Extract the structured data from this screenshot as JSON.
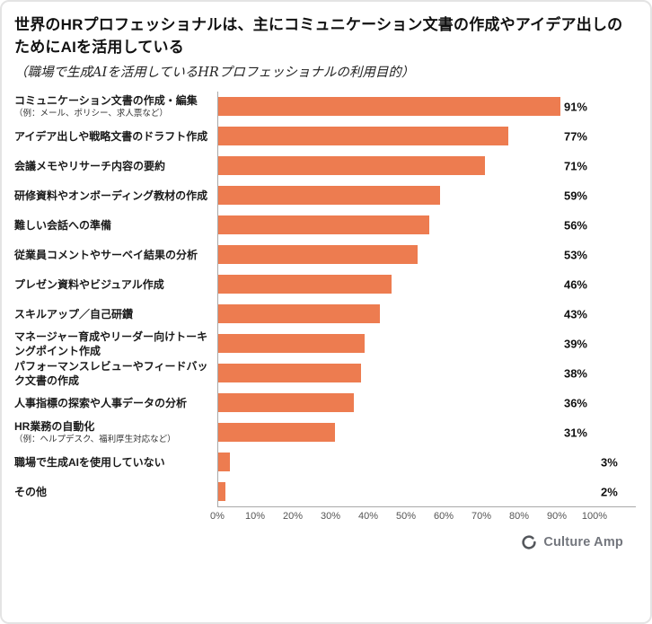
{
  "header": {
    "title": "世界のHRプロフェッショナルは、主にコミュニケーション文書の作成やアイデア出しのためにAIを活用している",
    "subtitle": "（職場で生成AIを活用しているHRプロフェッショナルの利用目的）"
  },
  "footer": {
    "logo_text": "Culture Amp"
  },
  "chart_data": {
    "type": "bar",
    "orientation": "horizontal",
    "title": "世界のHRプロフェッショナルは、主にコミュニケーション文書の作成やアイデア出しのためにAIを活用している",
    "subtitle": "（職場で生成AIを活用しているHRプロフェッショナルの利用目的）",
    "categories": [
      "コミュニケーション文書の作成・編集",
      "アイデア出しや戦略文書のドラフト作成",
      "会議メモやリサーチ内容の要約",
      "研修資料やオンボーディング教材の作成",
      "難しい会話への準備",
      "従業員コメントやサーベイ結果の分析",
      "プレゼン資料やビジュアル作成",
      "スキルアップ／自己研鑽",
      "マネージャー育成やリーダー向けトーキングポイント作成",
      "パフォーマンスレビューやフィードバック文書の作成",
      "人事指標の探索や人事データの分析",
      "HR業務の自動化",
      "職場で生成AIを使用していない",
      "その他"
    ],
    "category_captions": [
      "（例：メール、ポリシー、求人票など）",
      "",
      "",
      "",
      "",
      "",
      "",
      "",
      "",
      "",
      "",
      "（例：ヘルプデスク、福利厚生対応など）",
      "",
      ""
    ],
    "values": [
      91,
      77,
      71,
      59,
      56,
      53,
      46,
      43,
      39,
      38,
      36,
      31,
      3,
      2
    ],
    "value_suffix": "%",
    "xlim": [
      0,
      100
    ],
    "x_ticks": [
      "0%",
      "10%",
      "20%",
      "30%",
      "40%",
      "50%",
      "60%",
      "70%",
      "80%",
      "90%",
      "100%"
    ],
    "bar_color": "#ED7C50",
    "axis_color": "#a9a9a9",
    "grid": "none",
    "legend": "none"
  }
}
